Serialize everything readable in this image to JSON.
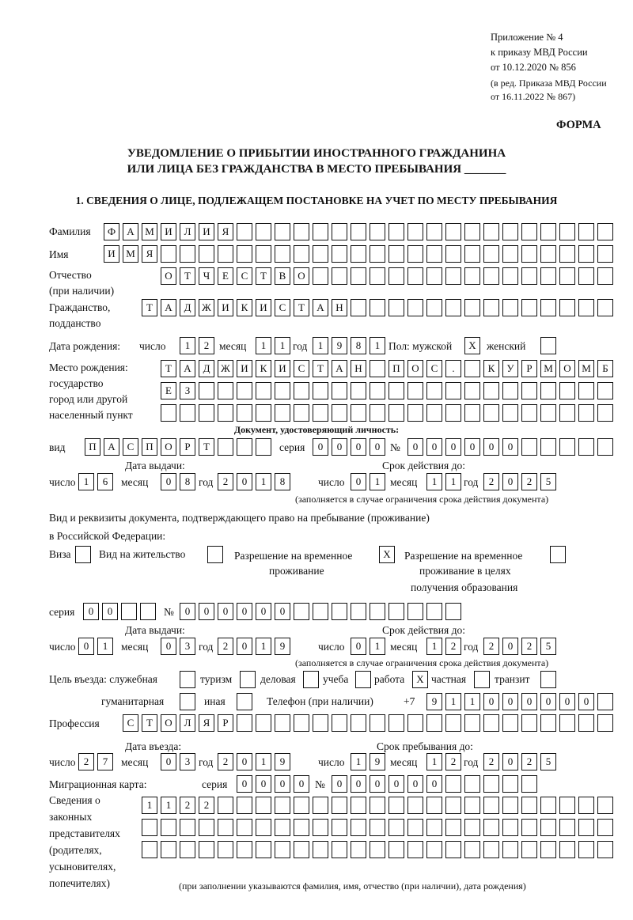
{
  "header": {
    "appendix": [
      "Приложение № 4",
      "к приказу МВД России",
      "от 10.12.2020 № 856"
    ],
    "revision": [
      "(в ред. Приказа МВД России",
      "от 16.11.2022 № 867)"
    ],
    "form_label": "ФОРМА",
    "title_line1": "УВЕДОМЛЕНИЕ О ПРИБЫТИИ ИНОСТРАННОГО ГРАЖДАНИНА",
    "title_line2": "ИЛИ ЛИЦА БЕЗ ГРАЖДАНСТВА В МЕСТО ПРЕБЫВАНИЯ _______",
    "section1": "1. СВЕДЕНИЯ О ЛИЦЕ, ПОДЛЕЖАЩЕМ ПОСТАНОВКЕ НА УЧЕТ ПО МЕСТУ ПРЕБЫВАНИЯ"
  },
  "labels": {
    "surname": "Фамилия",
    "name": "Имя",
    "patronymic": "Отчество",
    "patronymic_note": "(при наличии)",
    "citizenship": "Гражданство,",
    "citizenship2": "подданство",
    "birth_date": "Дата рождения:",
    "day": "число",
    "month": "месяц",
    "year": "год",
    "sex": "Пол: мужской",
    "female": "женский",
    "birthplace": [
      "Место рождения:",
      "государство",
      "город или другой",
      "населенный пункт"
    ],
    "id_doc": "Документ, удостоверяющий личность:",
    "kind": "вид",
    "series": "серия",
    "number": "№",
    "issue_date": "Дата выдачи:",
    "valid_until": "Срок действия до:",
    "valid_note": "(заполняется в случае ограничения срока действия документа)",
    "right_doc_line1": "Вид и реквизиты документа, подтверждающего право на пребывание (проживание)",
    "right_doc_line2": "в Российской Федерации:",
    "visa": "Виза",
    "residence": "Вид на жительство",
    "temp_residence": [
      "Разрешение на временное",
      "проживание"
    ],
    "temp_residence_edu": [
      "Разрешение на временное",
      "проживание в целях",
      "получения образования"
    ],
    "purpose": "Цель въезда: служебная",
    "tourism": "туризм",
    "business": "деловая",
    "study": "учеба",
    "work": "работа",
    "private": "частная",
    "transit": "транзит",
    "humanitarian": "гуманитарная",
    "other": "иная",
    "phone": "Телефон (при наличии)",
    "phone_prefix": "+7",
    "profession": "Профессия",
    "entry_date": "Дата въезда:",
    "stay_until": "Срок пребывания до:",
    "migration_card": "Миграционная карта:",
    "representatives": [
      "Сведения о",
      "законных",
      "представителях",
      "(родителях,",
      "усыновителях,",
      "попечителях)"
    ],
    "representatives_note": "(при заполнении указываются фамилия, имя, отчество (при наличии), дата рождения)"
  },
  "boxes": {
    "surname": "ФАМИЛИЯ",
    "name": "ИМЯ",
    "patronymic": "ОТЧЕСТВО",
    "citizenship": "ТАДЖИКИСТАН",
    "birth_day": "12",
    "birth_month": "11",
    "birth_year": "1981",
    "sex_male": "X",
    "sex_female": "",
    "birthplace1": "ТАДЖИКИСТАН ПОС. КУРМОМБ",
    "birthplace2": "ЕЗ",
    "birthplace3": "",
    "id_kind": "ПАСПОРТ",
    "id_series": "0000",
    "id_number": "000000",
    "id_issue_day": "16",
    "id_issue_month": "08",
    "id_issue_year": "2018",
    "id_valid_day": "01",
    "id_valid_month": "11",
    "id_valid_year": "2025",
    "visa": "",
    "residence": "",
    "temp_residence": "X",
    "temp_residence_edu": "",
    "rd_series": "00",
    "rd_number": "000000",
    "rd_issue_day": "01",
    "rd_issue_month": "03",
    "rd_issue_year": "2019",
    "rd_valid_day": "01",
    "rd_valid_month": "12",
    "rd_valid_year": "2025",
    "p_service": "",
    "p_tourism": "",
    "p_business": "",
    "p_study": "",
    "p_work": "X",
    "p_private": "",
    "p_transit": "",
    "p_humanitarian": "",
    "p_other": "",
    "phone": "911000000",
    "profession": "СТОЛЯР",
    "entry_day": "27",
    "entry_month": "03",
    "entry_year": "2019",
    "stay_day": "19",
    "stay_month": "12",
    "stay_year": "2025",
    "mc_series": "0000",
    "mc_number": "000000",
    "rep1": "1122",
    "rep2": "",
    "rep3": ""
  }
}
